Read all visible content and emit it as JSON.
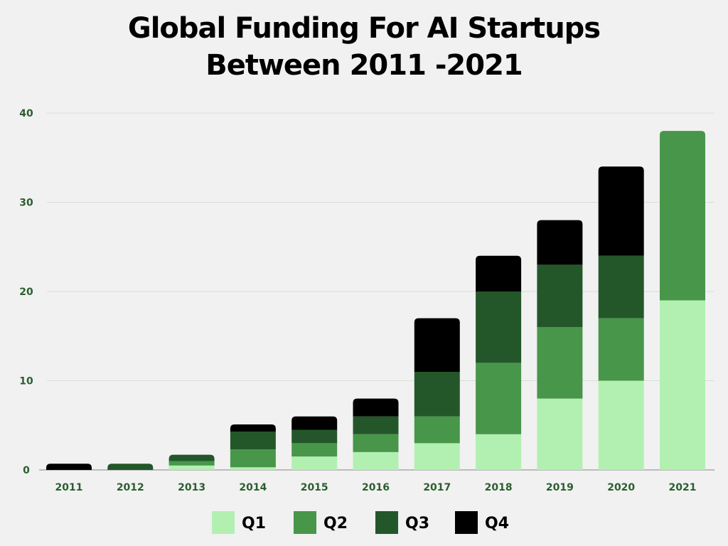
{
  "chart_data": {
    "type": "bar",
    "stacked": true,
    "title": "Global Funding For AI Startups Between 2011 -2021",
    "title_lines": [
      "Global Funding For AI Startups",
      "Between 2011 -2021"
    ],
    "xlabel": "",
    "ylabel": "",
    "ylim": [
      0,
      40
    ],
    "yticks": [
      0,
      10,
      20,
      30,
      40
    ],
    "grid": true,
    "legend_position": "bottom",
    "categories": [
      "2011",
      "2012",
      "2013",
      "2014",
      "2015",
      "2016",
      "2017",
      "2018",
      "2019",
      "2020",
      "2021"
    ],
    "series": [
      {
        "name": "Q1",
        "color": "#b2f0b2",
        "values": [
          0,
          0,
          0.5,
          0.3,
          1.5,
          2,
          3,
          4,
          8,
          10,
          19
        ]
      },
      {
        "name": "Q2",
        "color": "#48964a",
        "values": [
          0,
          0,
          0.5,
          2,
          1.5,
          2,
          3,
          8,
          8,
          7,
          19
        ]
      },
      {
        "name": "Q3",
        "color": "#23572a",
        "values": [
          0,
          0.7,
          0.7,
          2,
          1.5,
          2,
          5,
          8,
          7,
          7,
          0
        ]
      },
      {
        "name": "Q4",
        "color": "#000000",
        "values": [
          0.7,
          0,
          0,
          0.8,
          1.5,
          2,
          6,
          4,
          5,
          10,
          0
        ]
      }
    ]
  }
}
